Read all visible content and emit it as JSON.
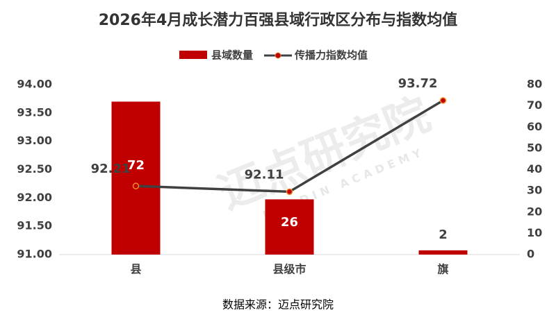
{
  "chart_data": {
    "type": "bar-line",
    "title": "2026年4月成长潜力百强县域行政区分布与指数均值",
    "categories": [
      "县",
      "县级市",
      "旗"
    ],
    "series": [
      {
        "name": "县域数量",
        "type": "bar",
        "color": "#c00000",
        "axis": "y2",
        "values": [
          72,
          26,
          2
        ]
      },
      {
        "name": "传播力指数均值",
        "type": "line",
        "color": "#404040",
        "marker_color": "#c00000",
        "axis": "y",
        "values": [
          92.21,
          92.11,
          93.72
        ]
      }
    ],
    "ylim": [
      91,
      94
    ],
    "yticks": [
      {
        "value": 91,
        "label": "91.00"
      },
      {
        "value": 91.5,
        "label": "91.50"
      },
      {
        "value": 92,
        "label": "92.00"
      },
      {
        "value": 92.5,
        "label": "92.50"
      },
      {
        "value": 93,
        "label": "93.00"
      },
      {
        "value": 93.5,
        "label": "93.50"
      },
      {
        "value": 94,
        "label": "94.00"
      }
    ],
    "y2lim": [
      0,
      80
    ],
    "y2ticks": [
      0,
      10,
      20,
      30,
      40,
      50,
      60,
      70,
      80
    ],
    "legend": "top",
    "watermark": "迈点研究院",
    "watermark_sub": "MEADIN ACADEMY",
    "source": "数据来源：迈点研究院"
  }
}
